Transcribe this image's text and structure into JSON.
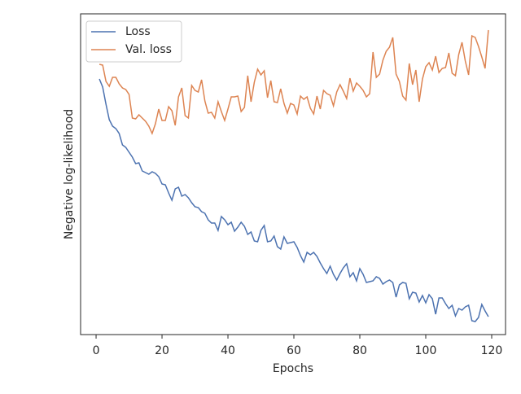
{
  "chart_data": {
    "type": "line",
    "xlabel": "Epochs",
    "ylabel": "Negative log-likelihood",
    "x": [
      1,
      2,
      3,
      4,
      5,
      6,
      7,
      8,
      9,
      10,
      11,
      12,
      13,
      14,
      15,
      16,
      17,
      18,
      19,
      20,
      21,
      22,
      23,
      24,
      25,
      26,
      27,
      28,
      29,
      30,
      31,
      32,
      33,
      34,
      35,
      36,
      37,
      38,
      39,
      40,
      41,
      42,
      43,
      44,
      45,
      46,
      47,
      48,
      49,
      50,
      51,
      52,
      53,
      54,
      55,
      56,
      57,
      58,
      59,
      60,
      61,
      62,
      63,
      64,
      65,
      66,
      67,
      68,
      69,
      70,
      71,
      72,
      73,
      74,
      75,
      76,
      77,
      78,
      79,
      80,
      81,
      82,
      83,
      84,
      85,
      86,
      87,
      88,
      89,
      90,
      91,
      92,
      93,
      94,
      95,
      96,
      97,
      98,
      99,
      100,
      101,
      102,
      103,
      104,
      105,
      106,
      107,
      108,
      109,
      110,
      111,
      112,
      113,
      114,
      115,
      116,
      117,
      118,
      119
    ],
    "series": [
      {
        "name": "Loss",
        "color": "#4c72b0",
        "values": [
          314,
          304,
          283,
          264,
          256,
          253,
          247,
          233,
          230,
          224,
          218,
          210,
          211,
          201,
          199,
          197,
          200,
          198,
          194,
          185,
          184,
          174,
          165,
          179,
          181,
          170,
          172,
          168,
          162,
          157,
          156,
          151,
          149,
          141,
          137,
          137,
          128,
          145,
          141,
          135,
          138,
          127,
          132,
          138,
          133,
          123,
          126,
          115,
          114,
          128,
          134,
          114,
          115,
          121,
          108,
          105,
          120,
          112,
          113,
          114,
          107,
          97,
          89,
          101,
          98,
          101,
          96,
          88,
          81,
          75,
          84,
          74,
          67,
          75,
          82,
          87,
          71,
          76,
          66,
          81,
          74,
          64,
          65,
          66,
          71,
          69,
          62,
          65,
          67,
          64,
          46,
          61,
          64,
          63,
          44,
          52,
          51,
          40,
          48,
          39,
          49,
          44,
          25,
          45,
          45,
          38,
          32,
          36,
          23,
          32,
          30,
          34,
          36,
          17,
          16,
          21,
          37,
          29,
          22
        ]
      },
      {
        "name": "Val. loss",
        "color": "#dd8452",
        "values": [
          332,
          331,
          311,
          305,
          316,
          316,
          308,
          303,
          301,
          295,
          266,
          265,
          270,
          266,
          262,
          256,
          247,
          259,
          277,
          263,
          263,
          280,
          275,
          257,
          292,
          303,
          269,
          266,
          306,
          300,
          298,
          313,
          287,
          272,
          273,
          266,
          286,
          274,
          263,
          277,
          292,
          292,
          293,
          274,
          279,
          318,
          286,
          310,
          326,
          319,
          324,
          291,
          312,
          286,
          285,
          302,
          284,
          272,
          284,
          282,
          271,
          293,
          289,
          292,
          278,
          271,
          293,
          277,
          300,
          296,
          294,
          281,
          298,
          307,
          299,
          290,
          315,
          299,
          309,
          305,
          300,
          292,
          296,
          347,
          316,
          320,
          337,
          348,
          353,
          365,
          320,
          311,
          293,
          288,
          333,
          307,
          325,
          286,
          314,
          329,
          334,
          325,
          342,
          322,
          327,
          328,
          346,
          321,
          318,
          344,
          359,
          336,
          319,
          367,
          365,
          354,
          341,
          327,
          374
        ]
      }
    ],
    "xlim": [
      -4.7,
      124.2
    ],
    "xticks": [
      0,
      20,
      40,
      60,
      80,
      100,
      120
    ],
    "ylim": [
      0,
      394
    ],
    "legend": "upper left"
  }
}
